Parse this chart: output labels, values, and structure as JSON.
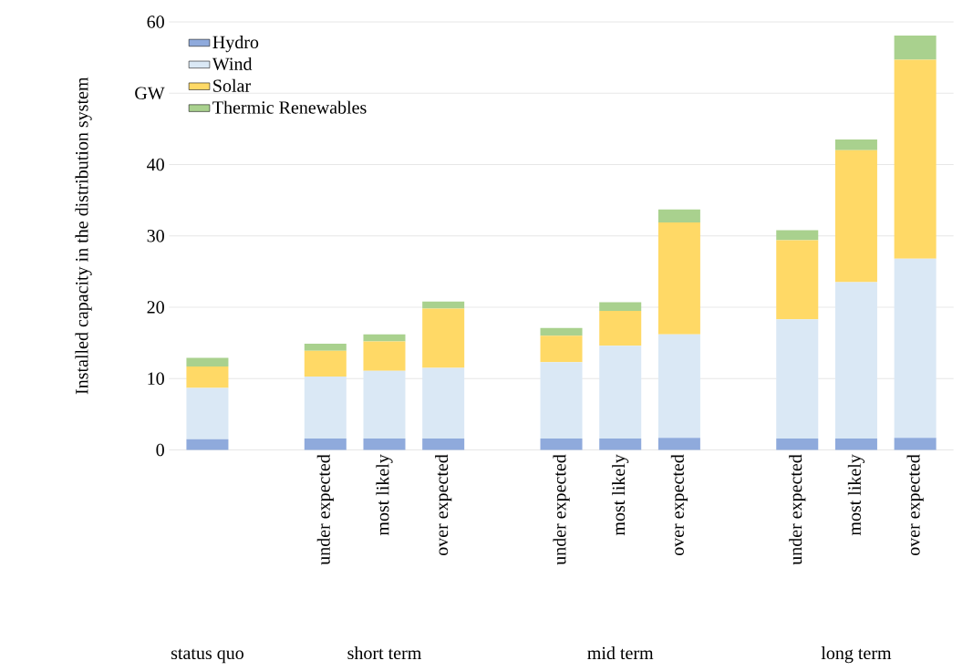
{
  "chart_data": {
    "type": "bar",
    "stacked": true,
    "ylabel": "Installed capacity in the distribution system",
    "categories": [
      null,
      null,
      "under expected",
      "most likely",
      "over expected",
      null,
      "under expected",
      "most likely",
      "over expected",
      null,
      "under expected",
      "most likely",
      "over expected"
    ],
    "series": [
      {
        "name": "Hydro",
        "color": "#8faadc",
        "values": [
          1.5,
          null,
          1.6,
          1.6,
          1.6,
          null,
          1.6,
          1.6,
          1.7,
          null,
          1.6,
          1.6,
          1.7
        ]
      },
      {
        "name": "Wind",
        "color": "#dae8f5",
        "values": [
          7.2,
          null,
          8.7,
          9.5,
          9.9,
          null,
          10.7,
          13.0,
          14.5,
          null,
          16.7,
          21.9,
          25.1
        ]
      },
      {
        "name": "Solar",
        "color": "#ffd966",
        "values": [
          3.0,
          null,
          3.6,
          4.1,
          8.3,
          null,
          3.7,
          4.9,
          15.7,
          null,
          11.1,
          18.5,
          27.9
        ]
      },
      {
        "name": "Thermic Renewables",
        "color": "#a9d18e",
        "values": [
          1.2,
          null,
          1.0,
          1.0,
          1.0,
          null,
          1.1,
          1.2,
          1.8,
          null,
          1.4,
          1.5,
          3.4
        ]
      }
    ],
    "ylim": [
      0,
      60
    ],
    "yticks": [
      0,
      10,
      20,
      30,
      40,
      {
        "value": 50,
        "label": "GW"
      },
      60
    ],
    "grid": "y",
    "legend": "top left",
    "annotations": [
      "status quo",
      "short term",
      "mid term",
      "long term"
    ]
  }
}
